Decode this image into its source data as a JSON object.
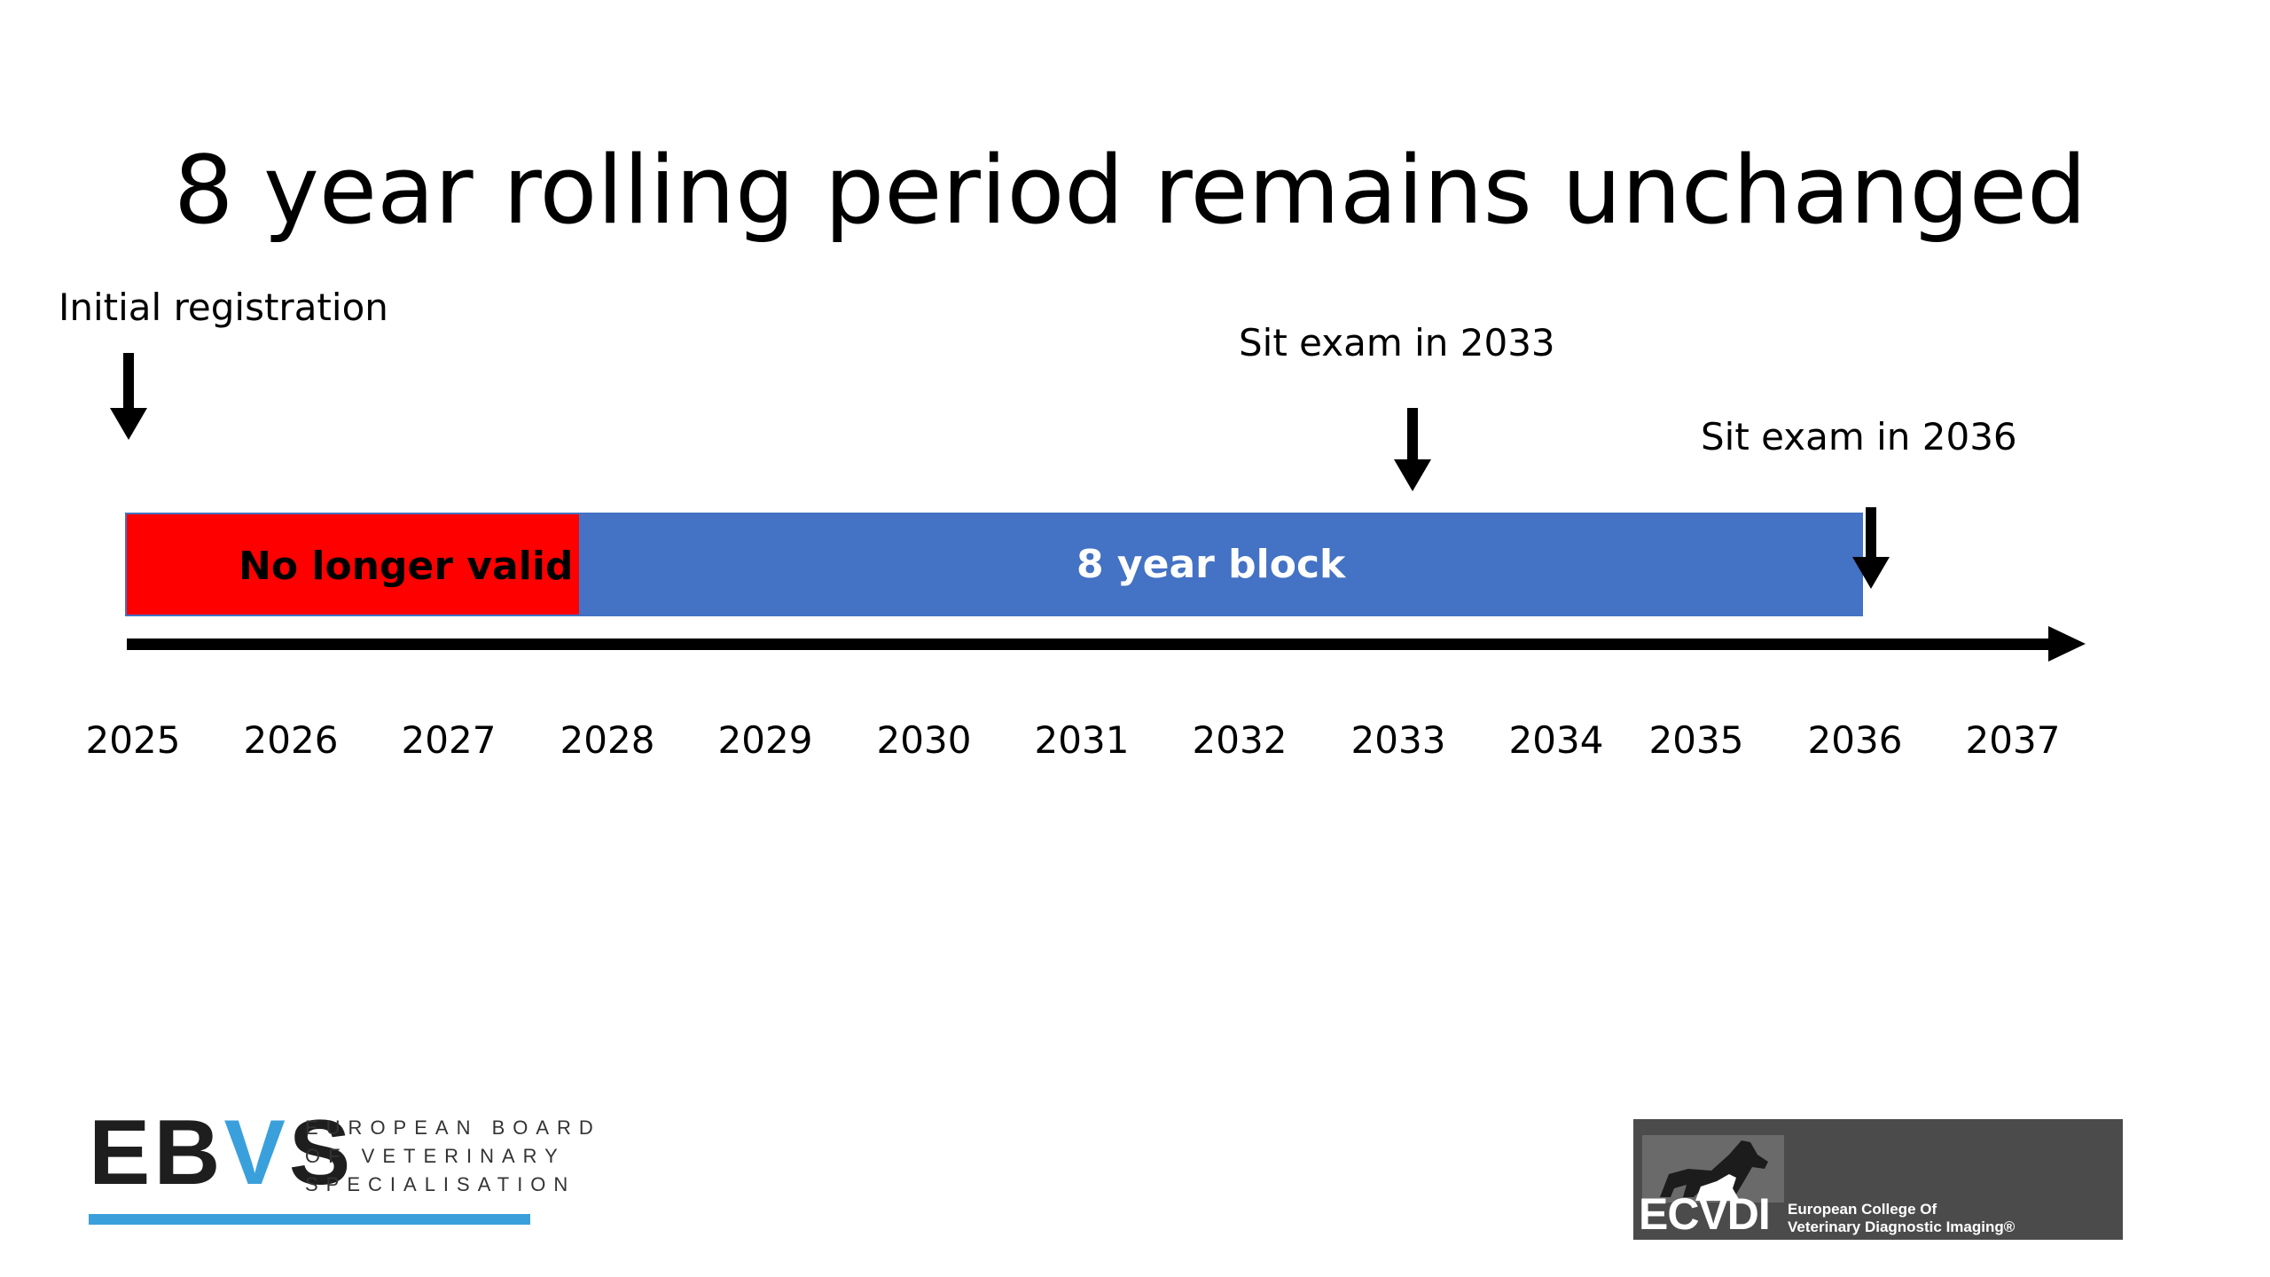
{
  "title": "8 year rolling period remains unchanged",
  "annotations": {
    "initial": "Initial registration",
    "sit_2033": "Sit exam in 2033",
    "sit_2036": "Sit exam in 2036"
  },
  "bars": {
    "invalid_label": "No longer valid",
    "block_label": "8 year block"
  },
  "colors": {
    "invalid": "#ff0000",
    "block": "#4472c4",
    "axis": "#000000"
  },
  "years": [
    "2025",
    "2026",
    "2027",
    "2028",
    "2029",
    "2030",
    "2031",
    "2032",
    "2033",
    "2034",
    "2035",
    "2036",
    "2037"
  ],
  "logos": {
    "ebvs": {
      "letters_a": "EB",
      "letters_v": "V",
      "letters_b": "S",
      "line1": "EUROPEAN BOARD",
      "line2": "OF VETERINARY",
      "line3": "SPECIALISATION"
    },
    "ecvdi": {
      "name": "ECVDI",
      "line1": "European College Of",
      "line2": "Veterinary Diagnostic Imaging®"
    }
  }
}
